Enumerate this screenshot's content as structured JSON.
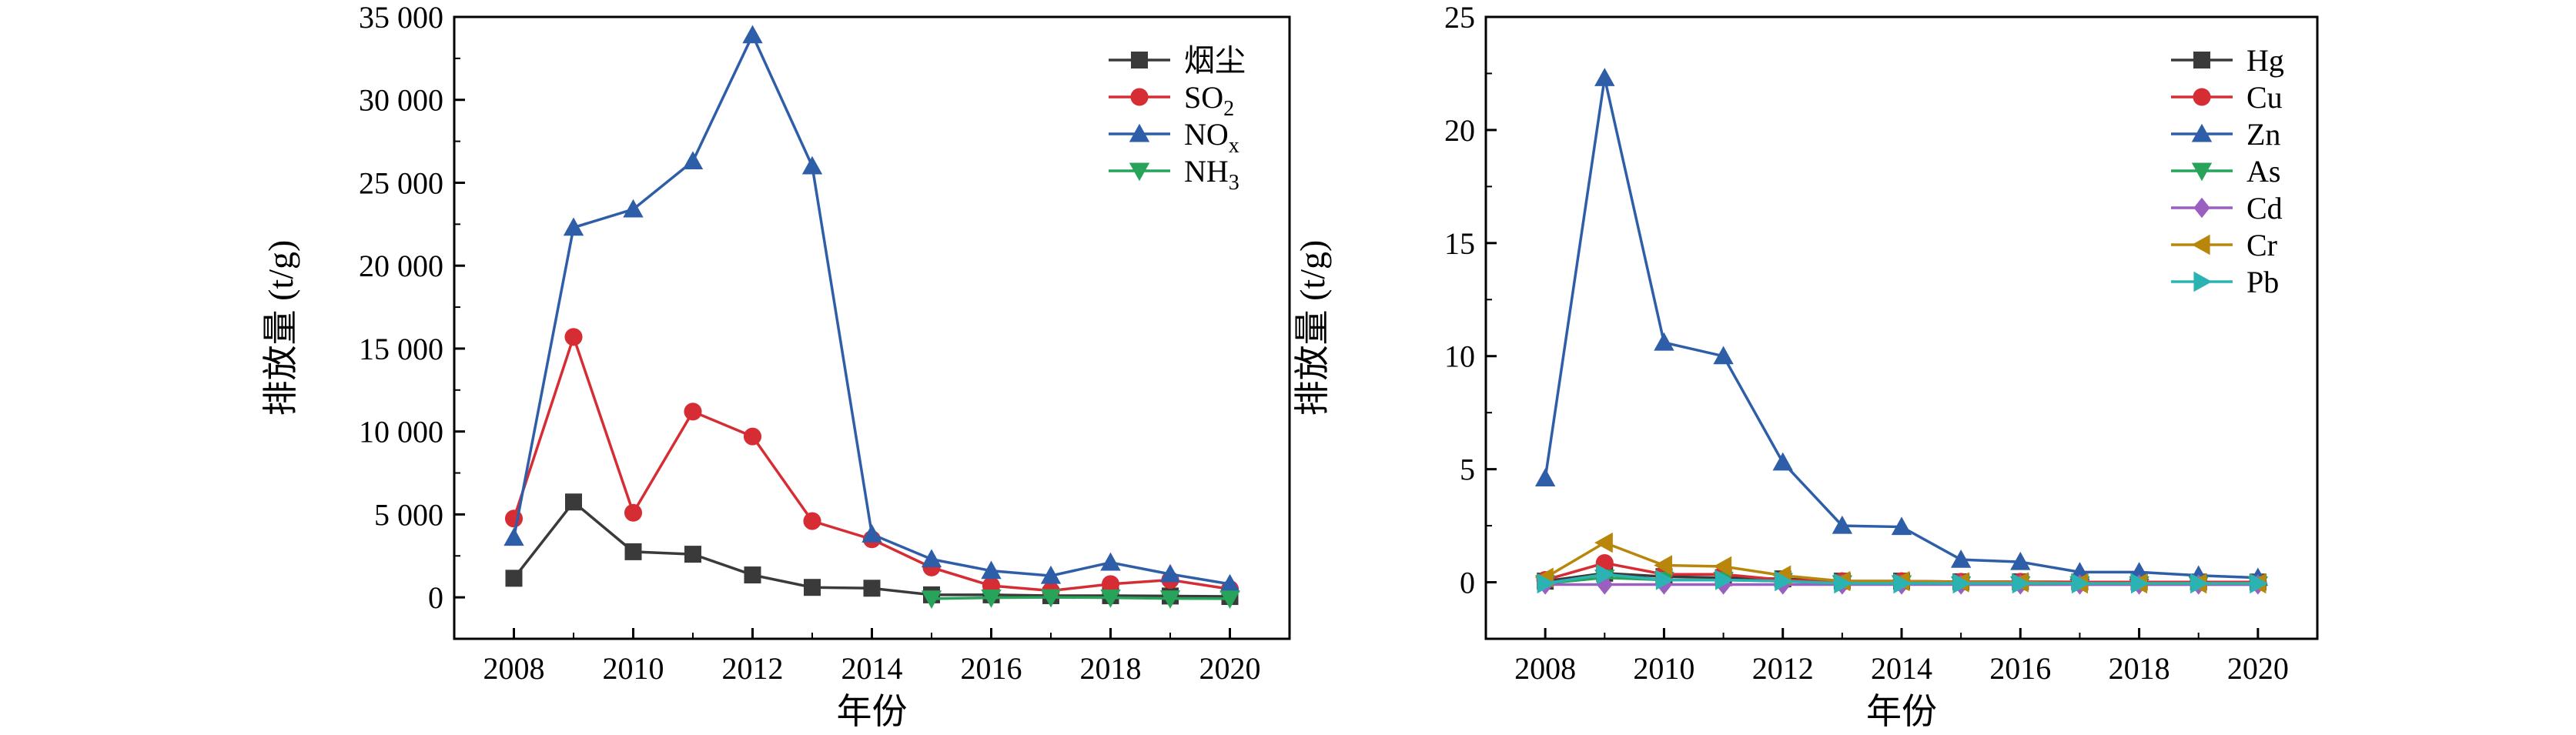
{
  "chart_data": [
    {
      "type": "line",
      "xlabel": "年份",
      "ylabel": "排放量 (t/g)",
      "xlim": [
        2007,
        2021
      ],
      "ylim": [
        -2500,
        35000
      ],
      "x_ticks": [
        2008,
        2010,
        2012,
        2014,
        2016,
        2018,
        2020
      ],
      "y_ticks": [
        0,
        5000,
        10000,
        15000,
        20000,
        25000,
        30000,
        35000
      ],
      "y_tick_labels": [
        "0",
        "5 000",
        "10 000",
        "15 000",
        "20 000",
        "25 000",
        "30 000",
        "35 000"
      ],
      "legend_position": "top-right",
      "series": [
        {
          "name": "烟尘",
          "color": "#3a3a3a",
          "marker": "square",
          "x": [
            2008,
            2009,
            2010,
            2011,
            2012,
            2013,
            2014,
            2015,
            2016,
            2017,
            2018,
            2019,
            2020
          ],
          "values": [
            1150,
            5750,
            2750,
            2600,
            1350,
            600,
            550,
            150,
            150,
            100,
            100,
            80,
            50
          ]
        },
        {
          "name": "SO",
          "name_sub": "2",
          "color": "#d62d35",
          "marker": "circle",
          "x": [
            2008,
            2009,
            2010,
            2011,
            2012,
            2013,
            2014,
            2015,
            2016,
            2017,
            2018,
            2019,
            2020
          ],
          "values": [
            4750,
            15700,
            5100,
            11200,
            9700,
            4600,
            3500,
            1800,
            700,
            400,
            800,
            1050,
            500
          ]
        },
        {
          "name": "NO",
          "name_sub": "x",
          "color": "#2f5ea8",
          "marker": "triangle-up",
          "x": [
            2008,
            2009,
            2010,
            2011,
            2012,
            2013,
            2014,
            2015,
            2016,
            2017,
            2018,
            2019,
            2020
          ],
          "values": [
            3600,
            22300,
            23400,
            26300,
            33900,
            26000,
            3800,
            2300,
            1600,
            1300,
            2100,
            1400,
            800
          ]
        },
        {
          "name": "NH",
          "name_sub": "3",
          "color": "#27a35a",
          "marker": "triangle-down",
          "x": [
            2015,
            2016,
            2017,
            2018,
            2019,
            2020
          ],
          "values": [
            -80,
            -20,
            0,
            -20,
            -70,
            -80
          ]
        }
      ]
    },
    {
      "type": "line",
      "xlabel": "年份",
      "ylabel": "排放量 (t/g)",
      "xlim": [
        2007,
        2021
      ],
      "ylim": [
        -2.5,
        25
      ],
      "x_ticks": [
        2008,
        2010,
        2012,
        2014,
        2016,
        2018,
        2020
      ],
      "y_ticks": [
        0,
        5,
        10,
        15,
        20,
        25
      ],
      "y_tick_labels": [
        "0",
        "5",
        "10",
        "15",
        "20",
        "25"
      ],
      "legend_position": "top-right",
      "series": [
        {
          "name": "Hg",
          "color": "#3a3a3a",
          "marker": "square",
          "x": [
            2008,
            2009,
            2010,
            2011,
            2012,
            2013,
            2014,
            2015,
            2016,
            2017,
            2018,
            2019,
            2020
          ],
          "values": [
            0.05,
            0.4,
            0.25,
            0.2,
            0.15,
            0.05,
            0.05,
            0.02,
            0.02,
            0.01,
            0.01,
            0.01,
            0.01
          ]
        },
        {
          "name": "Cu",
          "color": "#d62d35",
          "marker": "circle",
          "x": [
            2008,
            2009,
            2010,
            2011,
            2012,
            2013,
            2014,
            2015,
            2016,
            2017,
            2018,
            2019,
            2020
          ],
          "values": [
            0.1,
            0.85,
            0.35,
            0.35,
            0.1,
            0.05,
            0.05,
            0.02,
            0.02,
            0.01,
            0.01,
            0.01,
            0.01
          ]
        },
        {
          "name": "Zn",
          "color": "#2f5ea8",
          "marker": "triangle-up",
          "x": [
            2008,
            2009,
            2010,
            2011,
            2012,
            2013,
            2014,
            2015,
            2016,
            2017,
            2018,
            2019,
            2020
          ],
          "values": [
            4.6,
            22.3,
            10.6,
            10.0,
            5.3,
            2.5,
            2.45,
            1.0,
            0.9,
            0.45,
            0.45,
            0.3,
            0.2
          ]
        },
        {
          "name": "As",
          "color": "#27a35a",
          "marker": "triangle-down",
          "x": [
            2008,
            2009,
            2010,
            2011,
            2012,
            2013,
            2014,
            2015,
            2016,
            2017,
            2018,
            2019,
            2020
          ],
          "values": [
            -0.05,
            0.2,
            0.1,
            0.1,
            0.05,
            -0.05,
            -0.05,
            -0.1,
            -0.1,
            -0.1,
            -0.1,
            -0.1,
            -0.1
          ]
        },
        {
          "name": "Cd",
          "color": "#9b5fc0",
          "marker": "diamond",
          "x": [
            2008,
            2009,
            2010,
            2011,
            2012,
            2013,
            2014,
            2015,
            2016,
            2017,
            2018,
            2019,
            2020
          ],
          "values": [
            -0.1,
            -0.1,
            -0.1,
            -0.1,
            -0.1,
            -0.1,
            -0.1,
            -0.1,
            -0.1,
            -0.1,
            -0.1,
            -0.1,
            -0.1
          ]
        },
        {
          "name": "Cr",
          "color": "#b8860b",
          "marker": "triangle-left",
          "x": [
            2008,
            2009,
            2010,
            2011,
            2012,
            2013,
            2014,
            2015,
            2016,
            2017,
            2018,
            2019,
            2020
          ],
          "values": [
            0.2,
            1.75,
            0.75,
            0.7,
            0.3,
            0.05,
            0.05,
            0.0,
            0.0,
            -0.05,
            -0.05,
            -0.05,
            -0.05
          ]
        },
        {
          "name": "Pb",
          "color": "#2bb3b3",
          "marker": "triangle-right",
          "x": [
            2008,
            2009,
            2010,
            2011,
            2012,
            2013,
            2014,
            2015,
            2016,
            2017,
            2018,
            2019,
            2020
          ],
          "values": [
            -0.05,
            0.35,
            0.1,
            0.1,
            0.05,
            -0.05,
            -0.05,
            -0.05,
            -0.05,
            -0.05,
            -0.05,
            -0.05,
            -0.05
          ]
        }
      ]
    }
  ]
}
